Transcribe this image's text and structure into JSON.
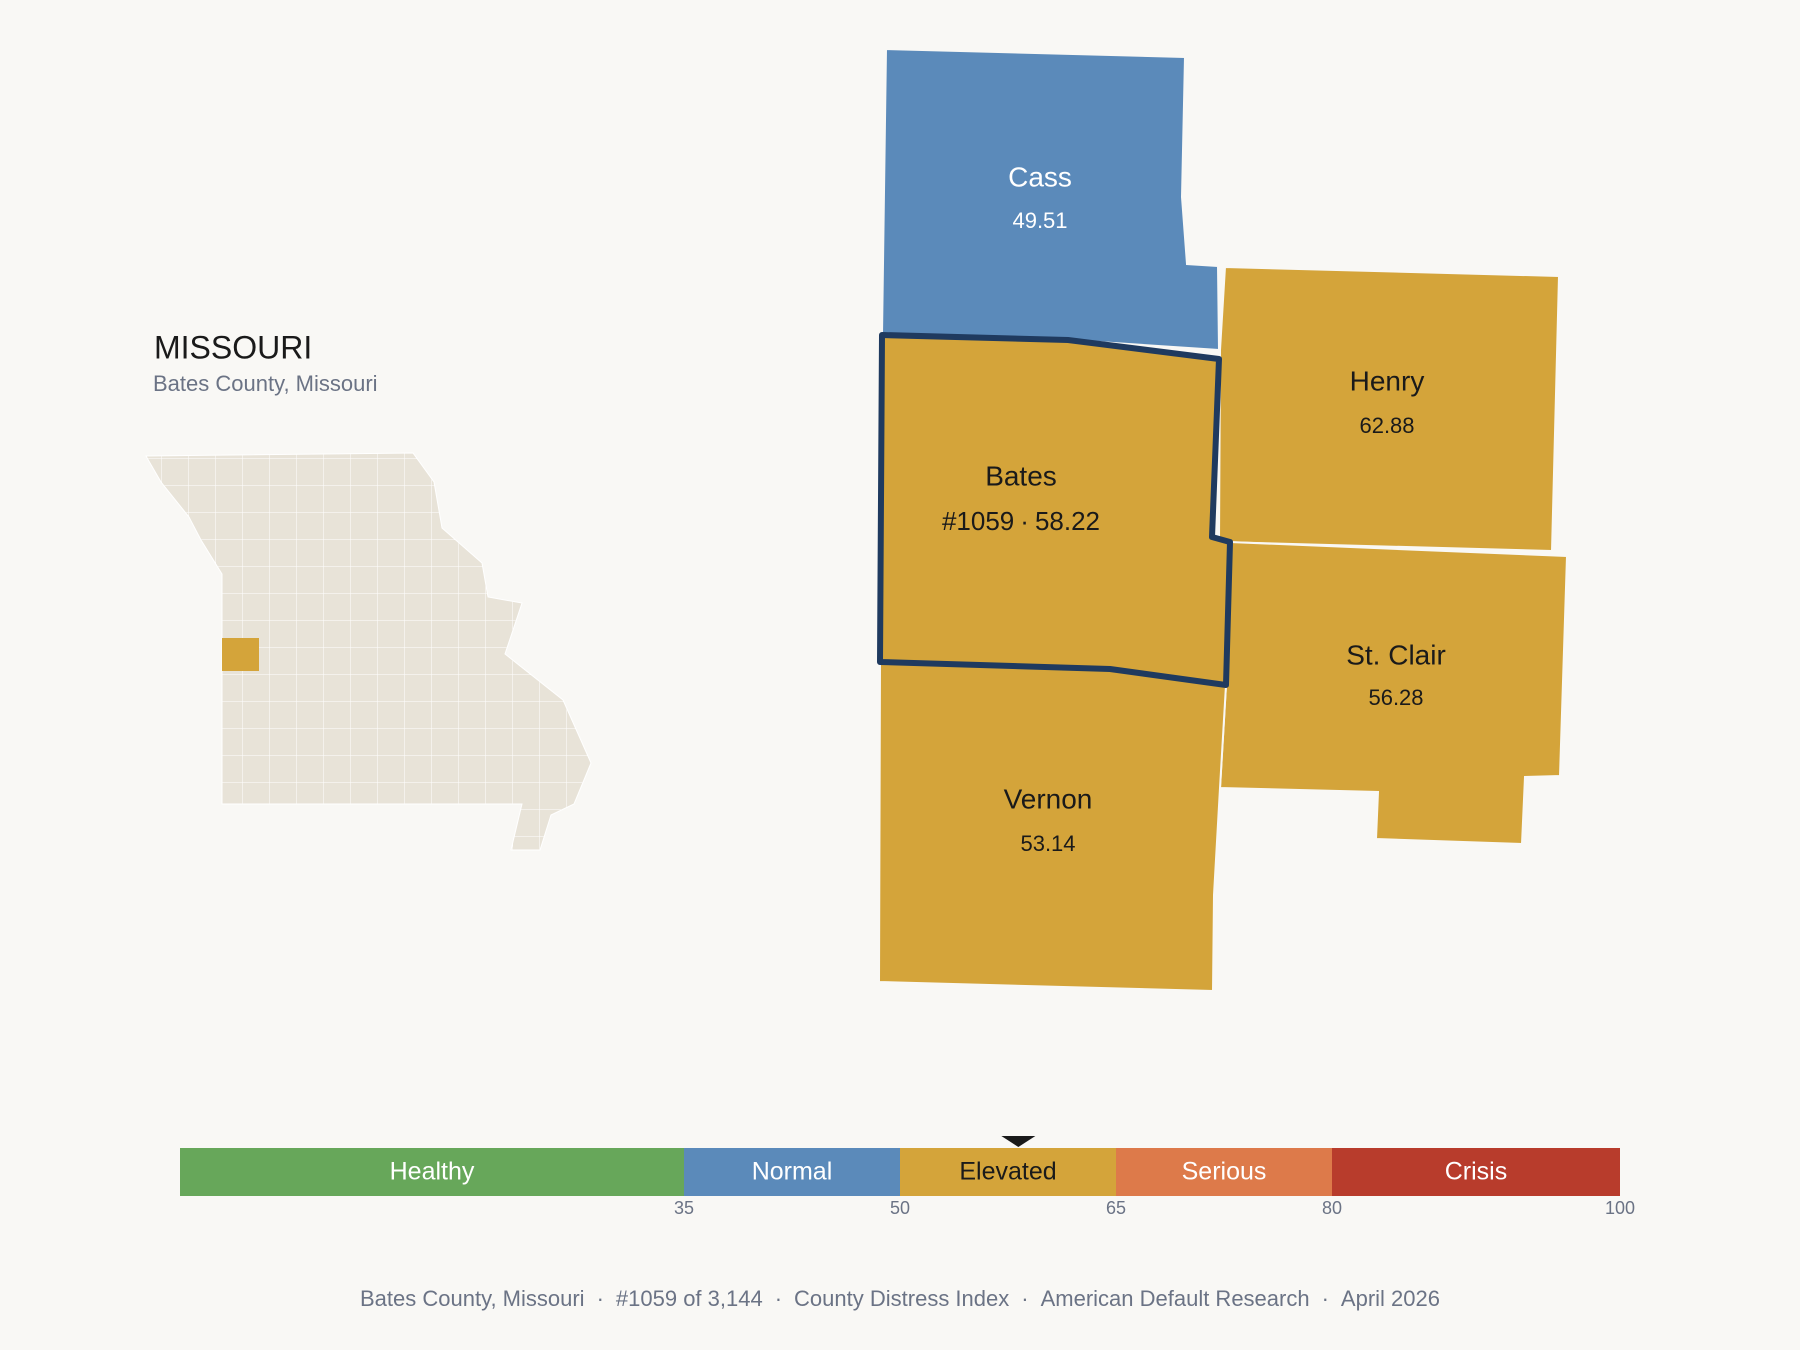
{
  "header": {
    "title": "MISSOURI",
    "subtitle": "Bates County, Missouri"
  },
  "counties": [
    {
      "name": "Cass",
      "value": 49.51,
      "color": "#5b8aba",
      "label_color": "#ffffff"
    },
    {
      "name": "Henry",
      "value": 62.88,
      "color": "#d4a43a",
      "label_color": "#1a1a1a"
    },
    {
      "name": "Bates",
      "rank": "#1059",
      "value": 58.22,
      "color": "#d4a43a",
      "label_color": "#1a1a1a",
      "outline": "#1f3a5f"
    },
    {
      "name": "St. Clair",
      "value": 56.28,
      "color": "#d4a43a",
      "label_color": "#1a1a1a"
    },
    {
      "name": "Vernon",
      "value": 53.14,
      "color": "#d4a43a",
      "label_color": "#1a1a1a"
    }
  ],
  "separator": "·",
  "scale": {
    "lim": [
      0,
      100
    ],
    "ticks": [
      35,
      50,
      65,
      80,
      100
    ],
    "bands": [
      {
        "label": "Healthy",
        "color": "#67a75a",
        "label_color": "#ffffff"
      },
      {
        "label": "Normal",
        "color": "#5b8aba",
        "label_color": "#ffffff"
      },
      {
        "label": "Elevated",
        "color": "#d4a43a",
        "label_color": "#1a1a1a"
      },
      {
        "label": "Serious",
        "color": "#dd7a4a",
        "label_color": "#ffffff"
      },
      {
        "label": "Crisis",
        "color": "#b83c2c",
        "label_color": "#ffffff"
      }
    ]
  },
  "footer": [
    "Bates County, Missouri",
    "#1059 of 3,144",
    "County Distress Index",
    "American Default Research",
    "April 2026"
  ]
}
